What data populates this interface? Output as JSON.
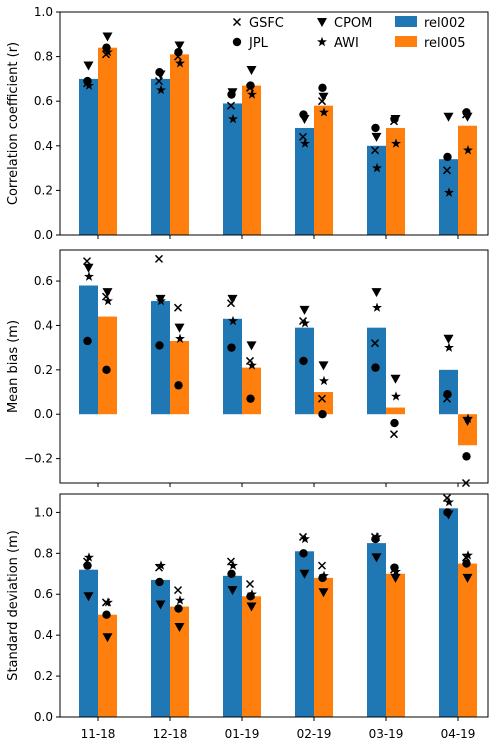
{
  "chart_data": {
    "type": "bar",
    "categories": [
      "11-18",
      "12-18",
      "01-19",
      "02-19",
      "03-19",
      "04-19"
    ],
    "colors": {
      "rel002": "#1f77b4",
      "rel005": "#ff7f0e"
    },
    "legend": {
      "placement": "top",
      "markers": [
        {
          "name": "GSFC",
          "marker": "x"
        },
        {
          "name": "JPL",
          "marker": "circle"
        },
        {
          "name": "CPOM",
          "marker": "triangle-down"
        },
        {
          "name": "AWI",
          "marker": "star"
        }
      ],
      "bars": [
        {
          "name": "rel002",
          "color": "#1f77b4"
        },
        {
          "name": "rel005",
          "color": "#ff7f0e"
        }
      ]
    },
    "panels": [
      {
        "ylabel": "Correlation coefficient (r)",
        "ylim": [
          0,
          1.0
        ],
        "yticks": [
          0.0,
          0.2,
          0.4,
          0.6,
          0.8,
          1.0
        ],
        "tick_labels": [
          "0.0",
          "0.2",
          "0.4",
          "0.6",
          "0.8",
          "1.0"
        ],
        "series": [
          {
            "name": "rel002",
            "values": [
              0.7,
              0.7,
              0.59,
              0.48,
              0.4,
              0.34
            ]
          },
          {
            "name": "rel005",
            "values": [
              0.84,
              0.81,
              0.67,
              0.58,
              0.48,
              0.49
            ]
          }
        ],
        "points": {
          "rel002": {
            "GSFC": [
              0.68,
              0.69,
              0.58,
              0.44,
              0.38,
              0.29
            ],
            "JPL": [
              0.69,
              0.73,
              0.63,
              0.54,
              0.48,
              0.35
            ],
            "CPOM": [
              0.76,
              0.72,
              0.64,
              0.52,
              0.44,
              0.53
            ],
            "AWI": [
              0.67,
              0.65,
              0.52,
              0.41,
              0.3,
              0.19
            ]
          },
          "rel005": {
            "GSFC": [
              0.81,
              0.8,
              0.66,
              0.6,
              0.51,
              0.54
            ],
            "JPL": [
              0.84,
              0.82,
              0.67,
              0.66,
              0.52,
              0.55
            ],
            "CPOM": [
              0.89,
              0.85,
              0.74,
              0.62,
              0.52,
              0.53
            ],
            "AWI": [
              0.82,
              0.77,
              0.63,
              0.55,
              0.41,
              0.38
            ]
          }
        }
      },
      {
        "ylabel": "Mean bias (m)",
        "ylim": [
          -0.31,
          0.74
        ],
        "yticks": [
          -0.2,
          0.0,
          0.2,
          0.4,
          0.6
        ],
        "tick_labels": [
          "−0.2",
          "0.0",
          "0.2",
          "0.4",
          "0.6"
        ],
        "series": [
          {
            "name": "rel002",
            "values": [
              0.58,
              0.51,
              0.43,
              0.39,
              0.39,
              0.2
            ]
          },
          {
            "name": "rel005",
            "values": [
              0.44,
              0.33,
              0.21,
              0.1,
              0.03,
              -0.14
            ]
          }
        ],
        "points": {
          "rel002": {
            "GSFC": [
              0.69,
              0.7,
              0.5,
              0.42,
              0.32,
              0.07
            ],
            "JPL": [
              0.33,
              0.31,
              0.3,
              0.24,
              0.21,
              0.09
            ],
            "CPOM": [
              0.66,
              0.52,
              0.52,
              0.47,
              0.55,
              0.34
            ],
            "AWI": [
              0.62,
              0.51,
              0.42,
              0.41,
              0.48,
              0.3
            ]
          },
          "rel005": {
            "GSFC": [
              0.53,
              0.48,
              0.24,
              0.07,
              -0.09,
              -0.31
            ],
            "JPL": [
              0.2,
              0.13,
              0.07,
              0.0,
              -0.04,
              -0.19
            ],
            "CPOM": [
              0.55,
              0.39,
              0.31,
              0.22,
              0.16,
              -0.03
            ],
            "AWI": [
              0.51,
              0.34,
              0.22,
              0.15,
              0.08,
              -0.02
            ]
          }
        }
      },
      {
        "ylabel": "Standard deviation (m)",
        "ylim": [
          0,
          1.09
        ],
        "yticks": [
          0.0,
          0.2,
          0.4,
          0.6,
          0.8,
          1.0
        ],
        "tick_labels": [
          "0.0",
          "0.2",
          "0.4",
          "0.6",
          "0.8",
          "1.0"
        ],
        "series": [
          {
            "name": "rel002",
            "values": [
              0.72,
              0.67,
              0.69,
              0.81,
              0.85,
              1.02
            ]
          },
          {
            "name": "rel005",
            "values": [
              0.5,
              0.54,
              0.59,
              0.68,
              0.7,
              0.75
            ]
          }
        ],
        "points": {
          "rel002": {
            "GSFC": [
              0.76,
              0.73,
              0.76,
              0.88,
              0.88,
              1.07
            ],
            "JPL": [
              0.74,
              0.66,
              0.7,
              0.8,
              0.87,
              1.0
            ],
            "CPOM": [
              0.59,
              0.55,
              0.62,
              0.7,
              0.78,
              0.99
            ],
            "AWI": [
              0.78,
              0.74,
              0.74,
              0.87,
              0.88,
              1.05
            ]
          },
          "rel005": {
            "GSFC": [
              0.56,
              0.62,
              0.65,
              0.74,
              0.72,
              0.78
            ],
            "JPL": [
              0.5,
              0.53,
              0.59,
              0.68,
              0.73,
              0.75
            ],
            "CPOM": [
              0.39,
              0.44,
              0.54,
              0.61,
              0.68,
              0.68
            ],
            "AWI": [
              0.56,
              0.57,
              0.6,
              0.69,
              0.71,
              0.79
            ]
          }
        }
      }
    ]
  }
}
